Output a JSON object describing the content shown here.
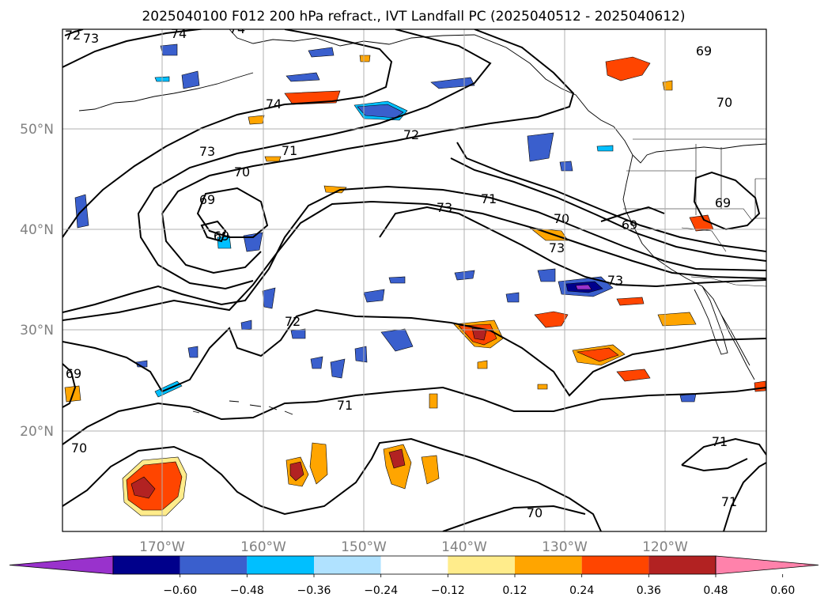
{
  "title": "2025040100 F012 200 hPa refract., IVT Landfall PC (2025040512 - 2025040612)",
  "lat_labels": [
    "50°N",
    "40°N",
    "30°N",
    "20°N"
  ],
  "lon_labels": [
    "170°W",
    "160°W",
    "150°W",
    "140°W",
    "130°W",
    "120°W"
  ],
  "colorbar": {
    "ticks": [
      "−0.60",
      "−0.48",
      "−0.36",
      "−0.24",
      "−0.12",
      "0.12",
      "0.24",
      "0.36",
      "0.48",
      "0.60"
    ],
    "colors": [
      "#9932CC",
      "#00008B",
      "#3A5FCD",
      "#00BFFF",
      "#B0E2FF",
      "#FFFFFF",
      "#FFEC8B",
      "#FFA500",
      "#FF4500",
      "#B22222",
      "#FF82AB"
    ]
  },
  "contour_labels": [
    "72",
    "73",
    "74",
    "74",
    "74",
    "73",
    "71",
    "70",
    "69",
    "69",
    "72",
    "71",
    "70",
    "73",
    "73",
    "69",
    "69",
    "73",
    "72",
    "71",
    "70",
    "69",
    "70",
    "71",
    "71",
    "70",
    "69",
    "70"
  ]
}
